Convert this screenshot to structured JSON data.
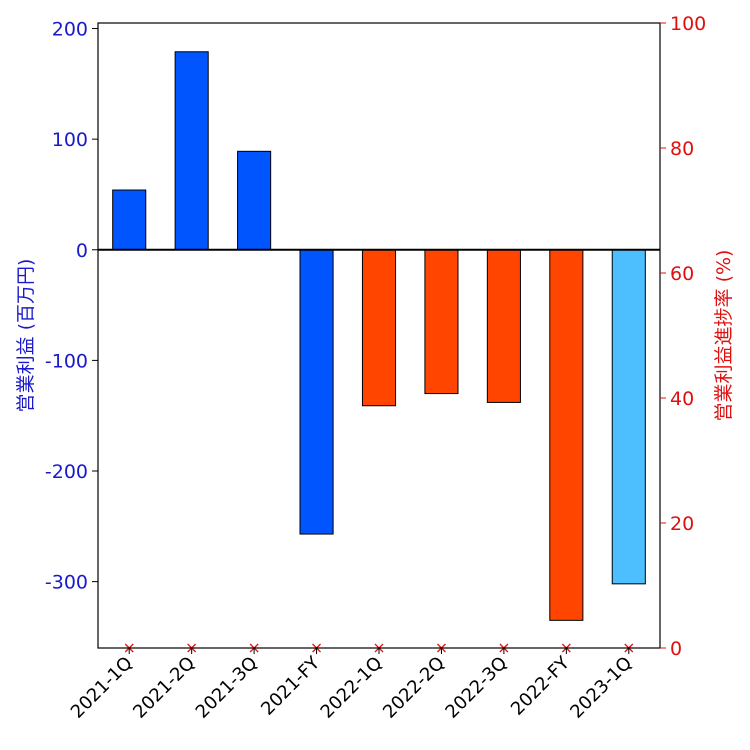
{
  "chart_data": {
    "type": "bar",
    "categories": [
      "2021-1Q",
      "2021-2Q",
      "2021-3Q",
      "2021-FY",
      "2022-1Q",
      "2022-2Q",
      "2022-3Q",
      "2022-FY",
      "2023-1Q"
    ],
    "values": [
      54,
      179,
      89,
      -257,
      -141,
      -130,
      -138,
      -335,
      -302
    ],
    "bar_colors": [
      "#0055ff",
      "#0055ff",
      "#0055ff",
      "#0055ff",
      "#ff4500",
      "#ff4500",
      "#ff4500",
      "#ff4500",
      "#4dbfff"
    ],
    "ylabel": "営業利益 (百万円)",
    "ylabel_right": "営業利益進捗率 (%)",
    "ylim": [
      -360,
      205
    ],
    "yticks": [
      200,
      100,
      0,
      -100,
      -200,
      -300
    ],
    "ylim_right": [
      0,
      100
    ],
    "yticks_right": [
      100,
      80,
      60,
      40,
      20,
      0
    ],
    "secondary_series": {
      "type": "scatter",
      "marker": "x",
      "values": [
        0,
        0,
        0,
        0,
        0,
        0,
        0,
        0,
        0
      ]
    },
    "left_axis_color": "#1a1acc",
    "right_axis_color": "#e01010",
    "grid": false,
    "legend": "none"
  }
}
